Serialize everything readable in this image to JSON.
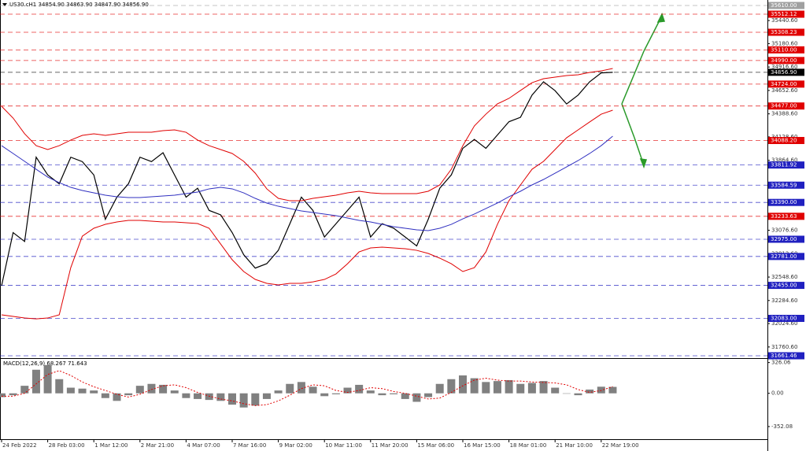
{
  "chart_data": [
    {
      "type": "line",
      "title": "US30.cH1  34854.90 34863.90 34847.90 34856.90",
      "categories": [
        "24 Feb 2022",
        null,
        null,
        null,
        "28 Feb 03:00",
        null,
        null,
        null,
        "1 Mar 12:00",
        null,
        null,
        null,
        "2 Mar 21:00",
        null,
        null,
        null,
        "4 Mar 07:00",
        null,
        null,
        null,
        "7 Mar 16:00",
        null,
        null,
        null,
        "9 Mar 02:00",
        null,
        null,
        null,
        "10 Mar 11:00",
        null,
        null,
        null,
        "11 Mar 20:00",
        null,
        null,
        null,
        "15 Mar 06:00",
        null,
        null,
        null,
        "16 Mar 15:00",
        null,
        null,
        null,
        "18 Mar 01:00",
        null,
        null,
        null,
        "21 Mar 10:00",
        null,
        null,
        null,
        "22 Mar 19:00",
        null
      ],
      "series": [
        {
          "color": "#000000",
          "values": [
            32450,
            33050,
            32950,
            33900,
            33700,
            33600,
            33900,
            33850,
            33700,
            33200,
            33450,
            33600,
            33900,
            33850,
            33950,
            33700,
            33450,
            33550,
            33300,
            33250,
            33050,
            32800,
            32650,
            32700,
            32850,
            33150,
            33450,
            33300,
            33000,
            33150,
            33300,
            33450,
            33000,
            33150,
            33100,
            33000,
            32900,
            33200,
            33550,
            33700,
            34000,
            34100,
            34000,
            34150,
            34300,
            34350,
            34600,
            34750,
            34650,
            34500,
            34600,
            34750,
            34850,
            34856.9
          ]
        },
        {
          "color": "#e00000",
          "values": [
            34474,
            34341,
            34164,
            34030,
            33986,
            34030,
            34093,
            34146,
            34164,
            34146,
            34164,
            34181,
            34181,
            34181,
            34199,
            34208,
            34181,
            34093,
            34030,
            33986,
            33942,
            33853,
            33720,
            33543,
            33436,
            33409,
            33409,
            33436,
            33454,
            33472,
            33498,
            33516,
            33498,
            33489,
            33489,
            33489,
            33489,
            33516,
            33587,
            33764,
            34030,
            34252,
            34385,
            34501,
            34563,
            34652,
            34740,
            34785,
            34802,
            34820,
            34829,
            34856,
            34873,
            34900
          ]
        },
        {
          "color": "#e00000",
          "values": [
            32123,
            32105,
            32087,
            32078,
            32087,
            32123,
            32655,
            33010,
            33099,
            33143,
            33170,
            33188,
            33188,
            33179,
            33170,
            33170,
            33161,
            33152,
            33099,
            32921,
            32744,
            32611,
            32522,
            32478,
            32460,
            32478,
            32478,
            32495,
            32522,
            32584,
            32699,
            32832,
            32877,
            32886,
            32877,
            32868,
            32850,
            32815,
            32762,
            32699,
            32611,
            32655,
            32832,
            33143,
            33409,
            33587,
            33764,
            33853,
            33986,
            34119,
            34208,
            34297,
            34385,
            34430
          ]
        },
        {
          "color": "#3030c0",
          "values": [
            34030,
            33942,
            33853,
            33764,
            33676,
            33613,
            33560,
            33525,
            33498,
            33472,
            33454,
            33445,
            33445,
            33454,
            33463,
            33472,
            33489,
            33507,
            33543,
            33560,
            33543,
            33498,
            33436,
            33383,
            33347,
            33321,
            33294,
            33276,
            33259,
            33241,
            33214,
            33188,
            33170,
            33143,
            33117,
            33099,
            33081,
            33072,
            33099,
            33143,
            33205,
            33259,
            33321,
            33383,
            33454,
            33516,
            33587,
            33649,
            33720,
            33791,
            33862,
            33942,
            34030,
            34137
          ]
        }
      ],
      "ylim": [
        31635,
        35672
      ],
      "yticks": [
        {
          "value": 35440.6,
          "label": "35440.60"
        },
        {
          "value": 35180.6,
          "label": "35180.60"
        },
        {
          "value": 34916.6,
          "label": "34916.60"
        },
        {
          "value": 34652.6,
          "label": "34652.60"
        },
        {
          "value": 34388.6,
          "label": "34388.60"
        },
        {
          "value": 34128.6,
          "label": "34128.60"
        },
        {
          "value": 33864.6,
          "label": "33864.60"
        },
        {
          "value": 33076.6,
          "label": "33076.60"
        },
        {
          "value": 32812.6,
          "label": "32812.60"
        },
        {
          "value": 32548.6,
          "label": "32548.60"
        },
        {
          "value": 32284.6,
          "label": "32284.60"
        },
        {
          "value": 32024.6,
          "label": "32024.60"
        },
        {
          "value": 31760.6,
          "label": "31760.60"
        }
      ],
      "levels": [
        {
          "value": 35610,
          "label": "35610.00",
          "color": "#a0a0a0"
        },
        {
          "value": 35512.12,
          "label": "35512.12",
          "color": "#e00000"
        },
        {
          "value": 35308.23,
          "label": "35308.23",
          "color": "#e00000"
        },
        {
          "value": 35110,
          "label": "35110.00",
          "color": "#e00000"
        },
        {
          "value": 34990,
          "label": "34990.00",
          "color": "#e00000"
        },
        {
          "value": 34856.9,
          "label": "34856.90",
          "color": "#000000"
        },
        {
          "value": 34724,
          "label": "34724.00",
          "color": "#e00000"
        },
        {
          "value": 34477,
          "label": "34477.00",
          "color": "#e00000"
        },
        {
          "value": 34088.2,
          "label": "34088.20",
          "color": "#e00000"
        },
        {
          "value": 33811.92,
          "label": "33811.92",
          "color": "#2020c0"
        },
        {
          "value": 33584.59,
          "label": "33584.59",
          "color": "#2020c0"
        },
        {
          "value": 33390,
          "label": "33390.00",
          "color": "#2020c0"
        },
        {
          "value": 33233.63,
          "label": "33233.63",
          "color": "#e00000"
        },
        {
          "value": 32975,
          "label": "32975.00",
          "color": "#2020c0"
        },
        {
          "value": 32781,
          "label": "32781.00",
          "color": "#2020c0"
        },
        {
          "value": 32455,
          "label": "32455.00",
          "color": "#2020c0"
        },
        {
          "value": 32083,
          "label": "32083.00",
          "color": "#2020c0"
        },
        {
          "value": 31661.46,
          "label": "31661.46",
          "color": "#2020c0"
        }
      ]
    },
    {
      "type": "bar",
      "title": "MACD(12,26,9) 68.267 71.643",
      "series": [
        {
          "color": "#808080",
          "values": [
            -40,
            -20,
            80,
            250,
            300,
            150,
            60,
            50,
            30,
            -50,
            -80,
            -20,
            80,
            100,
            90,
            30,
            -50,
            -60,
            -70,
            -80,
            -120,
            -150,
            -130,
            -60,
            30,
            100,
            120,
            70,
            -30,
            -10,
            60,
            90,
            30,
            -20,
            -10,
            -60,
            -90,
            -40,
            100,
            150,
            190,
            160,
            120,
            130,
            140,
            100,
            110,
            130,
            60,
            0,
            -20,
            40,
            70,
            68.267
          ]
        },
        {
          "color": "#e00000",
          "values": [
            -30,
            -30,
            0,
            100,
            200,
            240,
            190,
            120,
            70,
            30,
            -10,
            -40,
            -10,
            40,
            80,
            90,
            60,
            10,
            -30,
            -60,
            -80,
            -110,
            -130,
            -120,
            -80,
            -20,
            50,
            90,
            80,
            30,
            10,
            30,
            60,
            50,
            20,
            0,
            -30,
            -60,
            -50,
            10,
            80,
            140,
            160,
            140,
            130,
            130,
            120,
            115,
            110,
            90,
            40,
            10,
            30,
            71.643
          ]
        }
      ],
      "ylim": [
        -486,
        348
      ],
      "yticks": [
        326.06,
        {
          "value": 0,
          "label": "0.00"
        },
        -352.08
      ]
    }
  ]
}
